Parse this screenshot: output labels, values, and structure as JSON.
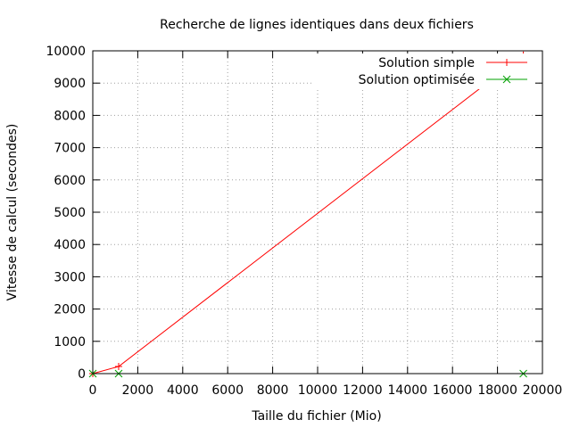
{
  "chart_data": {
    "type": "line",
    "title": "Recherche de lignes identiques dans deux fichiers",
    "xlabel": "Taille du fichier (Mio)",
    "ylabel": "Vitesse de calcul (secondes)",
    "xlim": [
      0,
      20000
    ],
    "ylim": [
      0,
      10000
    ],
    "xticks": [
      0,
      2000,
      4000,
      6000,
      8000,
      10000,
      12000,
      14000,
      16000,
      18000,
      20000
    ],
    "yticks": [
      0,
      1000,
      2000,
      3000,
      4000,
      5000,
      6000,
      7000,
      8000,
      9000,
      10000
    ],
    "grid": true,
    "legend_position": "top-right",
    "series": [
      {
        "name": "Solution simple",
        "color": "#ff0000",
        "marker": "+",
        "x": [
          0,
          1150,
          19150
        ],
        "y": [
          0,
          220,
          9870
        ]
      },
      {
        "name": "Solution optimisée",
        "color": "#00a000",
        "marker": "x",
        "x": [
          0,
          1150,
          19150
        ],
        "y": [
          0,
          0,
          0
        ]
      }
    ]
  }
}
